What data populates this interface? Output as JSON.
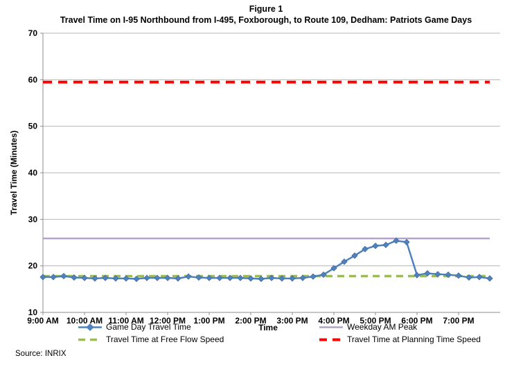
{
  "figure": {
    "label": "Figure 1",
    "title": "Travel Time on I-95 Northbound from I-495, Foxborough, to Route 109, Dedham: Patriots Game Days",
    "source": "Source: INRIX"
  },
  "chart_data": {
    "type": "line",
    "title": "Travel Time on I-95 Northbound from I-495, Foxborough, to Route 109, Dedham: Patriots Game Days",
    "xlabel": "Time",
    "ylabel": "Travel Time (Minutes)",
    "ylim": [
      10,
      70
    ],
    "ytick_interval": 10,
    "grid": true,
    "legend_position": "bottom",
    "x_tick_labels": [
      "9:00 AM",
      "10:00 AM",
      "11:00 AM",
      "12:00 PM",
      "1:00 PM",
      "2:00 PM",
      "3:00 PM",
      "4:00 PM",
      "5:00 PM",
      "6:00 PM",
      "7:00 PM"
    ],
    "categories": [
      "9:00 AM",
      "9:15 AM",
      "9:30 AM",
      "9:45 AM",
      "10:00 AM",
      "10:15 AM",
      "10:30 AM",
      "10:45 AM",
      "11:00 AM",
      "11:15 AM",
      "11:30 AM",
      "11:45 AM",
      "12:00 PM",
      "12:15 PM",
      "12:30 PM",
      "12:45 PM",
      "1:00 PM",
      "1:15 PM",
      "1:30 PM",
      "1:45 PM",
      "2:00 PM",
      "2:15 PM",
      "2:30 PM",
      "2:45 PM",
      "3:00 PM",
      "3:15 PM",
      "3:30 PM",
      "3:45 PM",
      "4:00 PM",
      "4:15 PM",
      "4:30 PM",
      "4:45 PM",
      "5:00 PM",
      "5:15 PM",
      "5:30 PM",
      "5:45 PM",
      "6:00 PM",
      "6:15 PM",
      "6:30 PM",
      "6:45 PM",
      "7:00 PM",
      "7:15 PM",
      "7:30 PM",
      "7:45 PM"
    ],
    "series": [
      {
        "name": "Game Day Travel Time",
        "type": "line-markers",
        "marker": "diamond",
        "color": "#4F81BD",
        "marker_edge_color": "#3A6597",
        "values": [
          17.6,
          17.6,
          17.8,
          17.5,
          17.4,
          17.3,
          17.4,
          17.3,
          17.3,
          17.2,
          17.4,
          17.4,
          17.4,
          17.3,
          17.7,
          17.5,
          17.4,
          17.4,
          17.4,
          17.4,
          17.3,
          17.2,
          17.4,
          17.3,
          17.3,
          17.4,
          17.7,
          18.1,
          19.5,
          20.9,
          22.2,
          23.6,
          24.3,
          24.5,
          25.4,
          25.1,
          18.0,
          18.4,
          18.2,
          18.1,
          17.9,
          17.5,
          17.6,
          17.3
        ]
      },
      {
        "name": "Weekday AM Peak",
        "type": "constant-line",
        "style": "solid",
        "color": "#B3A2C7",
        "value": 25.9
      },
      {
        "name": "Travel Time at Free Flow Speed",
        "type": "constant-line",
        "style": "dashed",
        "color": "#9BBB59",
        "value": 17.8
      },
      {
        "name": "Travel Time at Planning Time Speed",
        "type": "constant-line",
        "style": "dashed",
        "color": "#FF0000",
        "value": 59.5
      }
    ]
  }
}
